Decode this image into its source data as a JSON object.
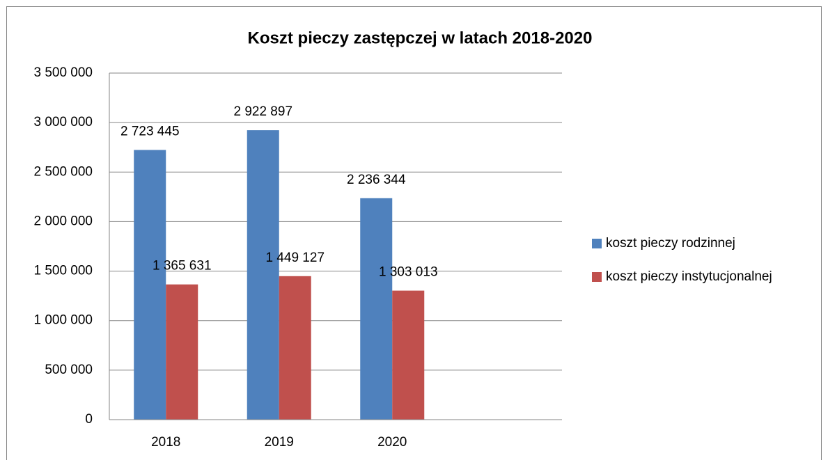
{
  "chart_data": {
    "type": "bar",
    "title": "Koszt pieczy zastępczej w latach 2018-2020",
    "categories": [
      "2018",
      "2019",
      "2020",
      null
    ],
    "series": [
      {
        "name": "koszt pieczy rodzinnej",
        "color": "#4f81bd",
        "values": [
          2723445,
          2922897,
          2236344,
          null
        ],
        "value_labels": [
          "2 723 445",
          "2 922 897",
          "2 236 344",
          null
        ]
      },
      {
        "name": "koszt pieczy instytucjonalnej",
        "color": "#c0504d",
        "values": [
          1365631,
          1449127,
          1303013,
          null
        ],
        "value_labels": [
          "1 365 631",
          "1 449 127",
          "1 303 013",
          null
        ]
      }
    ],
    "ylim": [
      0,
      3500000
    ],
    "yticks": [
      0,
      {
        "value": 500000,
        "label": "500 000"
      },
      {
        "value": 1000000,
        "label": "1 000 000"
      },
      {
        "value": 1500000,
        "label": "1 500 000"
      },
      {
        "value": 2000000,
        "label": "2 000 000"
      },
      {
        "value": 2500000,
        "label": "2 500 000"
      },
      {
        "value": 3000000,
        "label": "3 000 000"
      },
      {
        "value": 3500000,
        "label": "3 500 000"
      }
    ],
    "grid": true,
    "legend": "right"
  }
}
